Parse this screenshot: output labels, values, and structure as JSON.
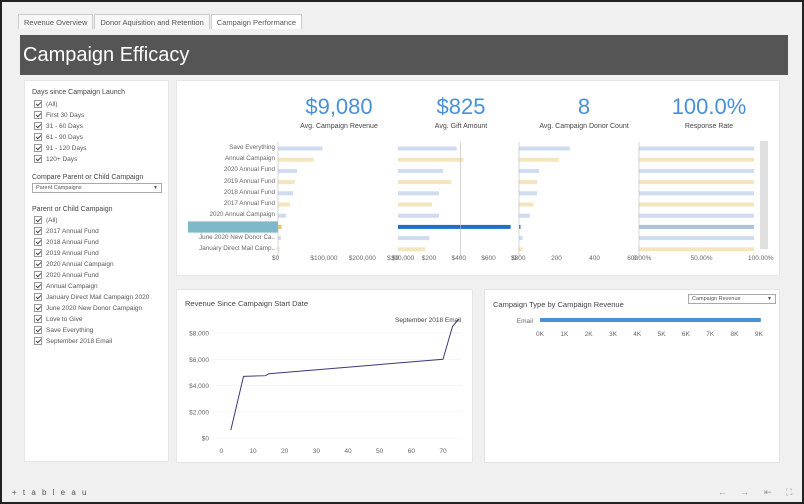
{
  "tabs": [
    "Revenue Overview",
    "Donor Aquisition and Retention",
    "Campaign Performance"
  ],
  "header": {
    "title": "Campaign Efficacy"
  },
  "filters": {
    "days_title": "Days since Campaign Launch",
    "days_options": [
      "(All)",
      "First 30 Days",
      "31 - 60 Days",
      "61 - 90 Days",
      "91 - 120 Days",
      "120+ Days"
    ],
    "compare_title": "Compare Parent or Child Campaign",
    "compare_value": "Parent Campaigns",
    "campaign_title": "Parent or Child Campaign",
    "campaign_options": [
      "(All)",
      "2017 Annual Fund",
      "2018 Annual Fund",
      "2019 Annual Fund",
      "2020 Annual Campaign",
      "2020 Annual Fund",
      "Annual Campaign",
      "January Direct Mail Campaign 2020",
      "June 2020 New Donor Campaign",
      "Love to Give",
      "Save Everything",
      "September 2018 Email"
    ]
  },
  "kpis": [
    {
      "value": "$9,080",
      "label": "Avg. Campaign Revenue"
    },
    {
      "value": "$825",
      "label": "Avg. Gift Amount"
    },
    {
      "value": "8",
      "label": "Avg. Campaign Donor Count"
    },
    {
      "value": "100.0%",
      "label": "Response Rate"
    }
  ],
  "kpi_rows": [
    "Save Everything",
    "Annual Campaign",
    "2020 Annual Fund",
    "2019 Annual Fund",
    "2018 Annual Fund",
    "2017 Annual Fund",
    "2020 Annual Campaign",
    "September 2018 Email",
    "June 2020 New Donor Ca..",
    "January Direct Mail Camp.."
  ],
  "kpi_highlight_index": 7,
  "kpi_axes": [
    {
      "ticks": [
        "$0",
        "$100,000",
        "$200,000",
        "$300,000"
      ]
    },
    {
      "ticks": [
        "$0",
        "$200",
        "$400",
        "$600",
        "$800"
      ]
    },
    {
      "ticks": [
        "0",
        "200",
        "400",
        "600"
      ]
    },
    {
      "ticks": [
        "0.00%",
        "50.00%",
        "100.00%"
      ]
    }
  ],
  "colors": {
    "accent": "#4a90d9",
    "highlight_bar": "#1f6fc5",
    "light_blue": "#cfdcf0",
    "light_yellow": "#f3e6bd",
    "highlight_label_bg": "#7fb8c9",
    "line": "#3c3a7a",
    "header_bg": "#555555"
  },
  "revenue_chart": {
    "title": "Revenue Since Campaign Start Date",
    "annotation": "September 2018 Email",
    "y_ticks": [
      "$8,000",
      "$6,000",
      "$4,000",
      "$2,000",
      "$0"
    ],
    "x_ticks": [
      "0",
      "10",
      "20",
      "30",
      "40",
      "50",
      "60",
      "70"
    ]
  },
  "type_chart": {
    "title": "Campaign Type by Campaign Revenue",
    "dropdown": "Campaign Revenue",
    "category": "Email",
    "x_ticks": [
      "0K",
      "1K",
      "2K",
      "3K",
      "4K",
      "5K",
      "6K",
      "7K",
      "8K",
      "9K"
    ]
  },
  "footer": {
    "logo": "+ t a b l e a u"
  },
  "chart_data": [
    {
      "type": "line",
      "title": "Revenue Since Campaign Start Date",
      "series": [
        {
          "name": "September 2018 Email",
          "x": [
            3,
            7,
            14,
            15,
            70,
            73,
            75
          ],
          "y": [
            600,
            4700,
            4750,
            4900,
            6000,
            8500,
            9080
          ]
        }
      ],
      "xlim": [
        -2,
        76
      ],
      "ylim": [
        0,
        9300
      ]
    },
    {
      "type": "bar",
      "title": "Campaign Type by Campaign Revenue",
      "categories": [
        "Email"
      ],
      "values": [
        9080
      ],
      "xlim": [
        0,
        9500
      ]
    },
    {
      "type": "bar",
      "title": "Avg. Campaign Revenue",
      "categories": [
        "Save Everything",
        "Annual Campaign",
        "2020 Annual Fund",
        "2019 Annual Fund",
        "2018 Annual Fund",
        "2017 Annual Fund",
        "2020 Annual Campaign",
        "September 2018 Email",
        "June 2020 New Donor Ca..",
        "January Direct Mail Camp.."
      ],
      "values": [
        112000,
        90000,
        48000,
        42000,
        38000,
        30000,
        20000,
        9080,
        7000,
        4000
      ],
      "xlim": [
        0,
        300000
      ]
    },
    {
      "type": "bar",
      "title": "Avg. Gift Amount",
      "categories": [
        "Save Everything",
        "Annual Campaign",
        "2020 Annual Fund",
        "2019 Annual Fund",
        "2018 Annual Fund",
        "2017 Annual Fund",
        "2020 Annual Campaign",
        "September 2018 Email",
        "June 2020 New Donor Ca..",
        "January Direct Mail Camp.."
      ],
      "values": [
        430,
        480,
        330,
        390,
        300,
        250,
        300,
        825,
        230,
        200
      ],
      "xlim": [
        0,
        850
      ]
    },
    {
      "type": "bar",
      "title": "Avg. Campaign Donor Count",
      "categories": [
        "Save Everything",
        "Annual Campaign",
        "2020 Annual Fund",
        "2019 Annual Fund",
        "2018 Annual Fund",
        "2017 Annual Fund",
        "2020 Annual Campaign",
        "September 2018 Email",
        "June 2020 New Donor Ca..",
        "January Direct Mail Camp.."
      ],
      "values": [
        280,
        220,
        110,
        100,
        100,
        80,
        60,
        8,
        20,
        20
      ],
      "xlim": [
        0,
        650
      ]
    },
    {
      "type": "bar",
      "title": "Response Rate",
      "categories": [
        "Save Everything",
        "Annual Campaign",
        "2020 Annual Fund",
        "2019 Annual Fund",
        "2018 Annual Fund",
        "2017 Annual Fund",
        "2020 Annual Campaign",
        "September 2018 Email",
        "June 2020 New Donor Ca..",
        "January Direct Mail Camp.."
      ],
      "values": [
        100,
        100,
        100,
        100,
        100,
        100,
        100,
        100,
        100,
        100
      ],
      "xlim": [
        0,
        100
      ]
    }
  ]
}
